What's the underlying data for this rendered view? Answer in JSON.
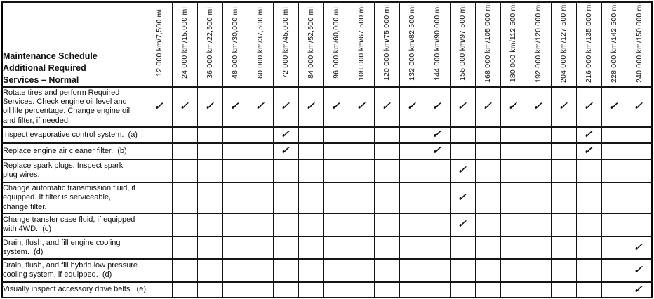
{
  "schedule": {
    "title": "Maintenance Schedule\nAdditional Required\nServices – Normal",
    "check_glyph": "✓",
    "intervals": [
      "12 000 km/7,500 mi",
      "24 000 km/15,000 mi",
      "36 000 km/22,500 mi",
      "48 000 km/30,000 mi",
      "60 000 km/37,500 mi",
      "72 000 km/45,000 mi",
      "84 000 km/52,500 mi",
      "96 000 km/60,000 mi",
      "108 000 km/67,500 mi",
      "120 000 km/75,000 mi",
      "132 000 km/82,500 mi",
      "144 000 km/90,000 mi",
      "156 000 km/97,500 mi",
      "168 000 km/105,000 mi",
      "180 000 km/112,500 mi",
      "192 000 km/120,000 mi",
      "204 000 km/127,500 mi",
      "216 000 km/135,000 mi",
      "228 000 km/142,500 mi",
      "240 000 km/150,000 mi"
    ],
    "services": [
      {
        "label": "Rotate tires and perform Required\nServices. Check engine oil level and\noil life percentage. Change engine oil\nand filter, if needed.",
        "checked_intervals": [
          1,
          2,
          3,
          4,
          5,
          6,
          7,
          8,
          9,
          10,
          11,
          12,
          13,
          14,
          15,
          16,
          17,
          18,
          19,
          20
        ]
      },
      {
        "label": "Inspect evaporative control system.  (a)",
        "checked_intervals": [
          6,
          12,
          18
        ]
      },
      {
        "label": "Replace engine air cleaner filter.  (b)",
        "checked_intervals": [
          6,
          12,
          18
        ]
      },
      {
        "label": "Replace spark plugs. Inspect spark\nplug wires.",
        "checked_intervals": [
          13
        ]
      },
      {
        "label": "Change automatic transmission fluid, if\nequipped. If filter is serviceable,\nchange filter.",
        "checked_intervals": [
          13
        ]
      },
      {
        "label": "Change transfer case fluid, if equipped\nwith 4WD.  (c)",
        "checked_intervals": [
          13
        ]
      },
      {
        "label": "Drain, flush, and fill engine cooling\nsystem.  (d)",
        "checked_intervals": [
          20
        ]
      },
      {
        "label": "Drain, flush, and fill hybrid low pressure\ncooling system, if equipped.  (d)",
        "checked_intervals": [
          20
        ]
      },
      {
        "label": "Visually inspect accessory drive belts.  (e)",
        "checked_intervals": [
          20
        ]
      }
    ]
  }
}
